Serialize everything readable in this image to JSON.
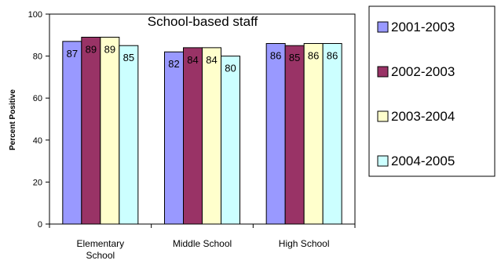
{
  "chart_data": {
    "type": "bar",
    "title": "School-based staff",
    "xlabel": "",
    "ylabel": "Percent Positive",
    "ylim": [
      0,
      100
    ],
    "yticks": [
      0,
      20,
      40,
      60,
      80,
      100
    ],
    "categories": [
      "Elementary School",
      "Middle School",
      "High School"
    ],
    "series": [
      {
        "name": "2001-2003",
        "values": [
          87,
          82,
          86
        ],
        "color": "#9999ff"
      },
      {
        "name": "2002-2003",
        "values": [
          89,
          84,
          85
        ],
        "color": "#993366"
      },
      {
        "name": "2003-2004",
        "values": [
          89,
          84,
          86
        ],
        "color": "#ffffcc"
      },
      {
        "name": "2004-2005",
        "values": [
          85,
          80,
          86
        ],
        "color": "#ccffff"
      }
    ],
    "grid": false,
    "legend_position": "right"
  }
}
